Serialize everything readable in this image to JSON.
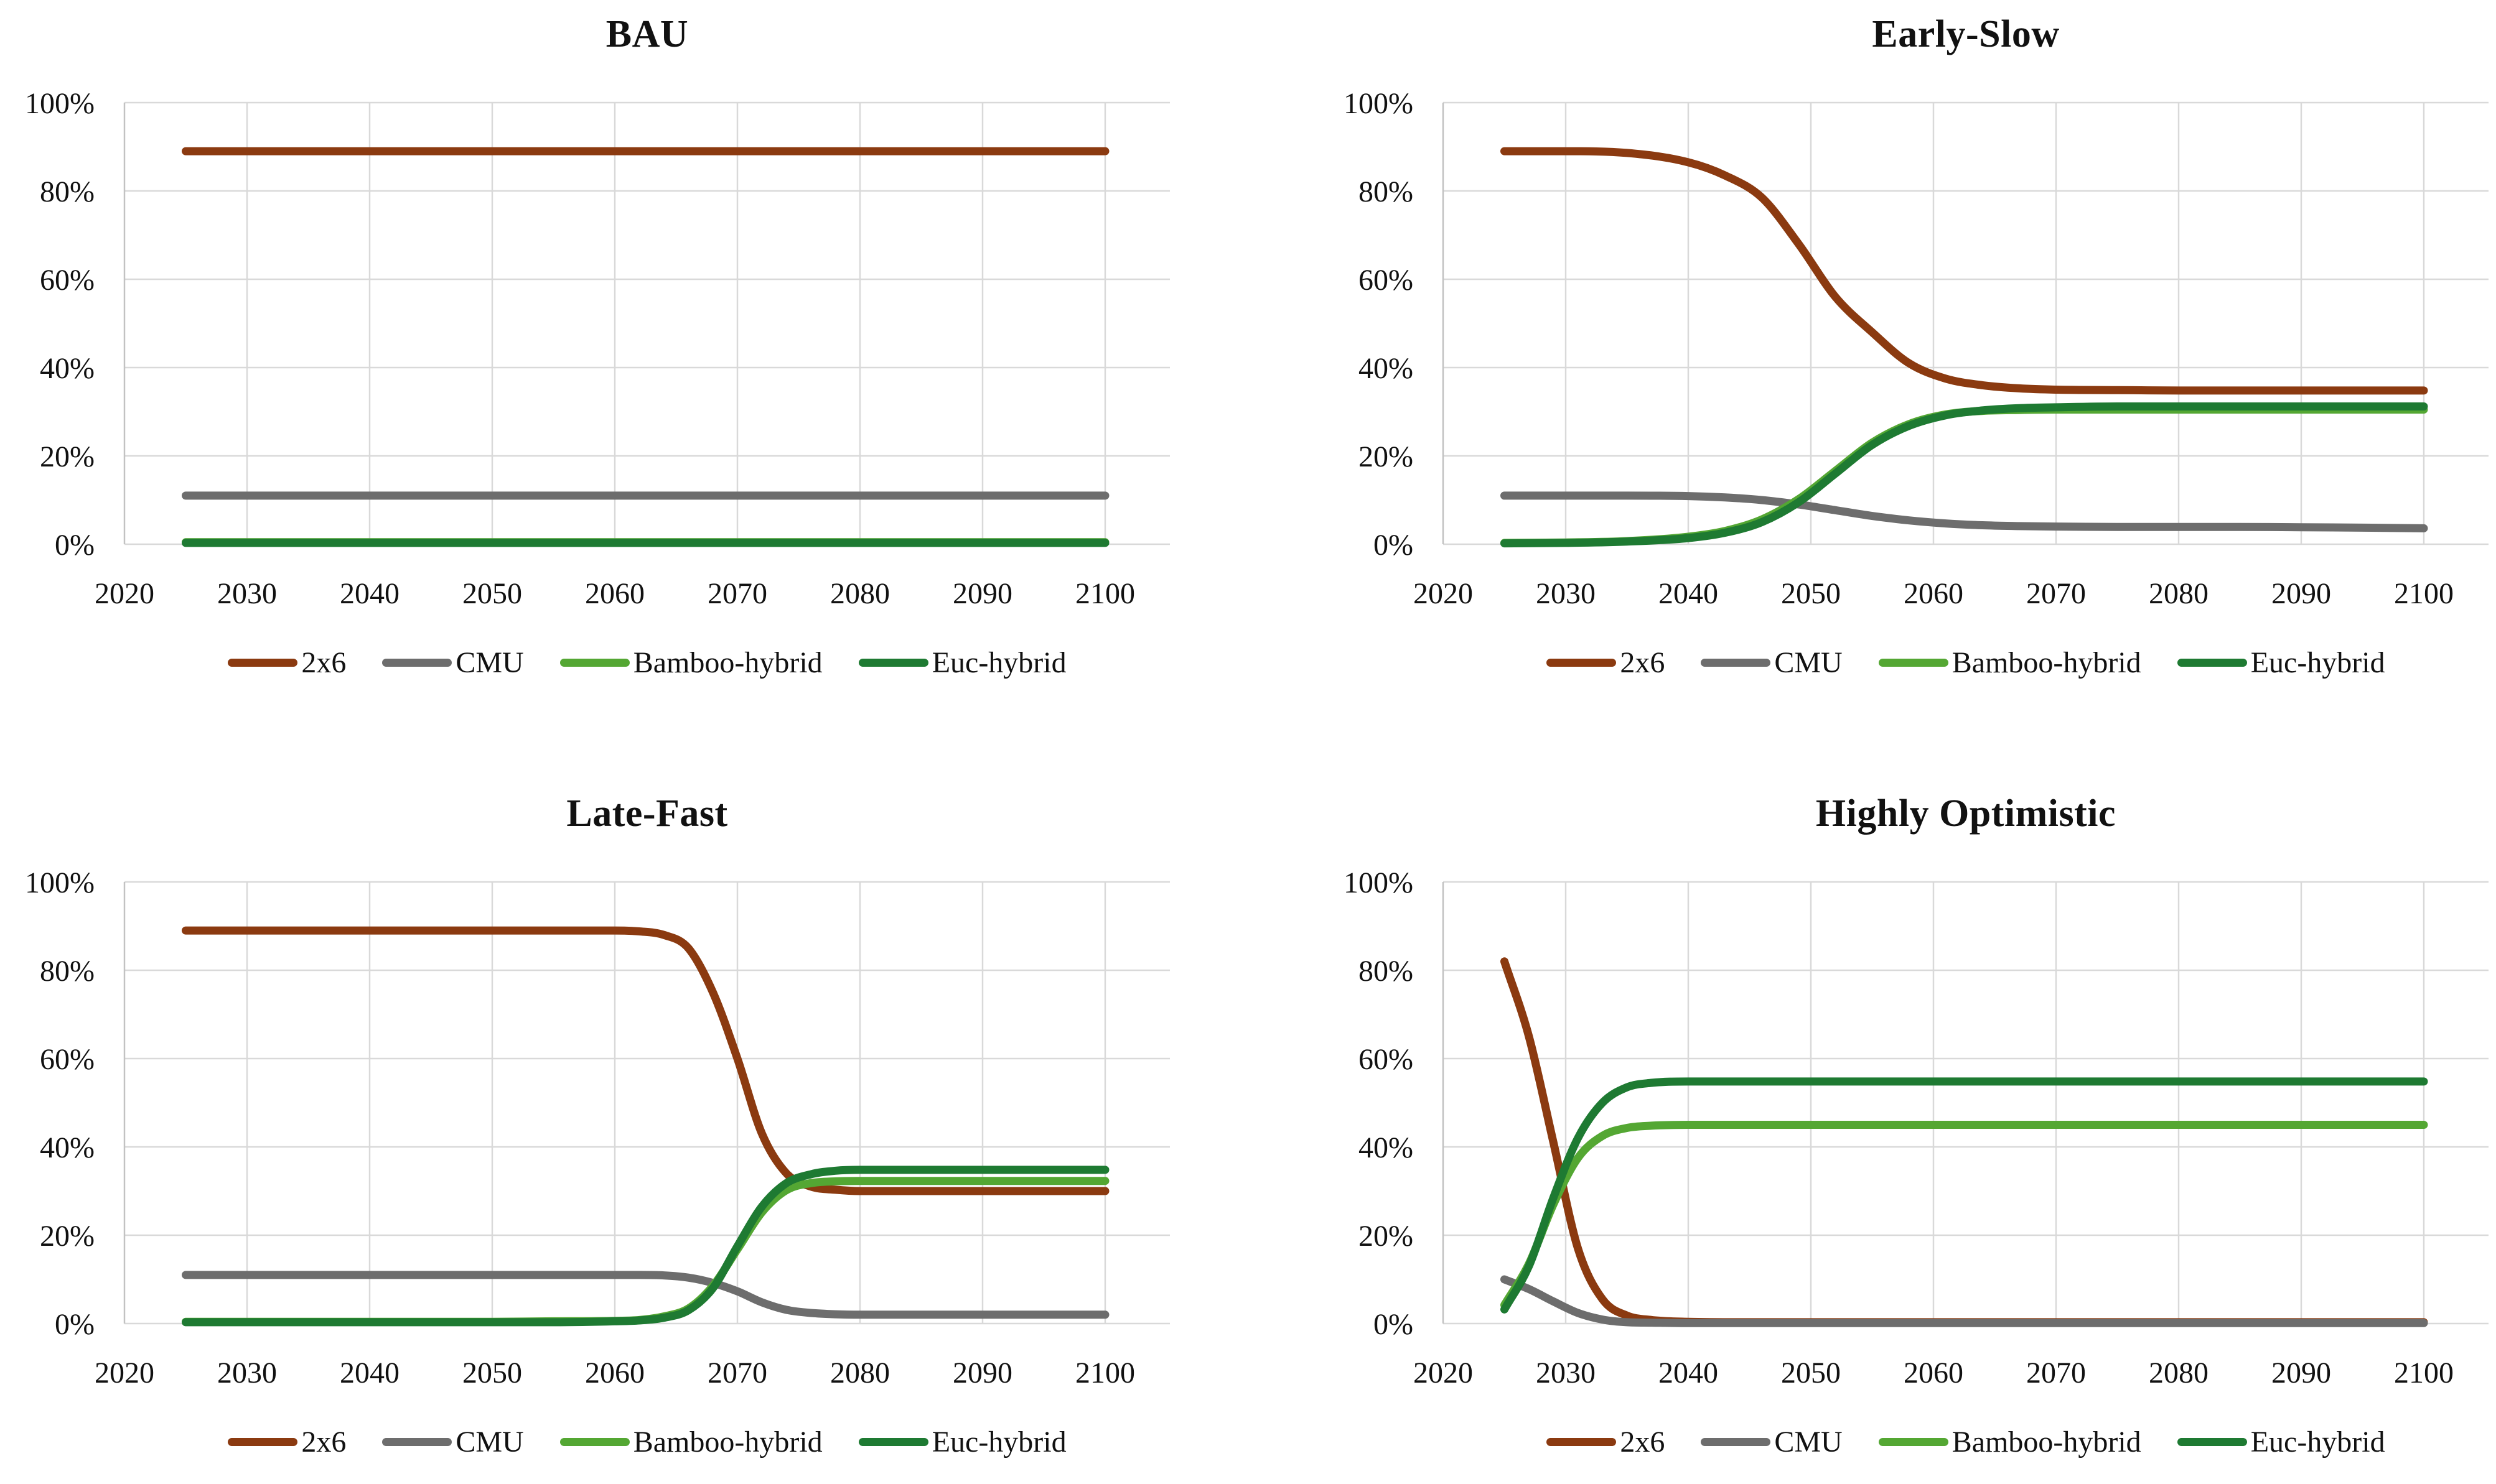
{
  "figure": {
    "background": "#ffffff",
    "description_titles": [
      "BAU",
      "Early-Slow",
      "Late-Fast",
      "Highly Optimistic"
    ]
  },
  "colors": {
    "grid": "#d9d9d9",
    "axis": "#c2c2c2",
    "text": "#111111",
    "series": {
      "2x6": "#8b3a10",
      "CMU": "#6d6d6d",
      "Bamboo-hybrid": "#54a733",
      "Euc-hybrid": "#1e7a32"
    }
  },
  "legend": [
    "2x6",
    "CMU",
    "Bamboo-hybrid",
    "Euc-hybrid"
  ],
  "chart_data": [
    {
      "type": "line",
      "title": "BAU",
      "xlabel": "",
      "ylabel": "",
      "xlim": [
        2020,
        2105
      ],
      "ylim": [
        0,
        100
      ],
      "grid": true,
      "legend_position": "bottom",
      "x_ticks": [
        2020,
        2030,
        2040,
        2050,
        2060,
        2070,
        2080,
        2090,
        2100
      ],
      "y_ticks": [
        "0%",
        "20%",
        "40%",
        "60%",
        "80%",
        "100%"
      ],
      "years": [
        2025,
        2030,
        2035,
        2040,
        2045,
        2050,
        2055,
        2060,
        2065,
        2070,
        2075,
        2080,
        2085,
        2090,
        2095,
        2100
      ],
      "series": [
        {
          "name": "2x6",
          "color": "#8b3a10",
          "values": [
            89,
            89,
            89,
            89,
            89,
            89,
            89,
            89,
            89,
            89,
            89,
            89,
            89,
            89,
            89,
            89
          ]
        },
        {
          "name": "CMU",
          "color": "#6d6d6d",
          "values": [
            11,
            11,
            11,
            11,
            11,
            11,
            11,
            11,
            11,
            11,
            11,
            11,
            11,
            11,
            11,
            11
          ]
        },
        {
          "name": "Bamboo-hybrid",
          "color": "#54a733",
          "values": [
            0.45,
            0.45,
            0.45,
            0.45,
            0.45,
            0.45,
            0.45,
            0.45,
            0.45,
            0.45,
            0.45,
            0.45,
            0.45,
            0.45,
            0.45,
            0.45
          ]
        },
        {
          "name": "Euc-hybrid",
          "color": "#1e7a32",
          "values": [
            0.3,
            0.3,
            0.3,
            0.3,
            0.3,
            0.3,
            0.3,
            0.3,
            0.3,
            0.3,
            0.3,
            0.3,
            0.3,
            0.3,
            0.3,
            0.3
          ]
        }
      ]
    },
    {
      "type": "line",
      "title": "Early-Slow",
      "xlabel": "",
      "ylabel": "",
      "xlim": [
        2020,
        2105
      ],
      "ylim": [
        0,
        100
      ],
      "grid": true,
      "legend_position": "bottom",
      "x_ticks": [
        2020,
        2030,
        2040,
        2050,
        2060,
        2070,
        2080,
        2090,
        2100
      ],
      "y_ticks": [
        "0%",
        "20%",
        "40%",
        "60%",
        "80%",
        "100%"
      ],
      "years": [
        2025,
        2030,
        2035,
        2040,
        2043,
        2046,
        2049,
        2052,
        2055,
        2058,
        2061,
        2064,
        2067,
        2070,
        2075,
        2080,
        2085,
        2090,
        2095,
        2100
      ],
      "series": [
        {
          "name": "2x6",
          "color": "#8b3a10",
          "values": [
            89,
            89,
            88.6,
            86.5,
            83.5,
            78.5,
            68,
            56,
            48,
            41,
            37.5,
            36,
            35.3,
            35,
            34.9,
            34.8,
            34.8,
            34.8,
            34.8,
            34.8
          ]
        },
        {
          "name": "CMU",
          "color": "#6d6d6d",
          "values": [
            11,
            11,
            11,
            10.9,
            10.6,
            10,
            9,
            7.7,
            6.4,
            5.4,
            4.7,
            4.3,
            4.1,
            4,
            3.9,
            3.9,
            3.9,
            3.85,
            3.75,
            3.6
          ]
        },
        {
          "name": "Bamboo-hybrid",
          "color": "#54a733",
          "values": [
            0.3,
            0.4,
            0.7,
            1.7,
            3,
            5.6,
            10.2,
            16.6,
            23,
            27.2,
            29.4,
            30.2,
            30.4,
            30.5,
            30.5,
            30.5,
            30.5,
            30.5,
            30.5,
            30.5
          ]
        },
        {
          "name": "Euc-hybrid",
          "color": "#1e7a32",
          "values": [
            0.2,
            0.3,
            0.6,
            1.4,
            2.6,
            5,
            9.5,
            16,
            22.5,
            26.8,
            29.2,
            30.3,
            30.8,
            31,
            31.2,
            31.2,
            31.2,
            31.2,
            31.2,
            31.2
          ]
        }
      ]
    },
    {
      "type": "line",
      "title": "Late-Fast",
      "xlabel": "",
      "ylabel": "",
      "xlim": [
        2020,
        2105
      ],
      "ylim": [
        0,
        100
      ],
      "grid": true,
      "legend_position": "bottom",
      "x_ticks": [
        2020,
        2030,
        2040,
        2050,
        2060,
        2070,
        2080,
        2090,
        2100
      ],
      "y_ticks": [
        "0%",
        "20%",
        "40%",
        "60%",
        "80%",
        "100%"
      ],
      "years": [
        2025,
        2030,
        2035,
        2040,
        2045,
        2050,
        2055,
        2060,
        2062,
        2064,
        2066,
        2068,
        2070,
        2072,
        2074,
        2076,
        2078,
        2080,
        2085,
        2090,
        2095,
        2100
      ],
      "series": [
        {
          "name": "2x6",
          "color": "#8b3a10",
          "values": [
            89,
            89,
            89,
            89,
            89,
            89,
            89,
            89,
            88.8,
            88,
            85,
            75,
            60,
            43,
            34,
            31,
            30.3,
            30,
            30,
            30,
            30,
            30
          ]
        },
        {
          "name": "CMU",
          "color": "#6d6d6d",
          "values": [
            11,
            11,
            11,
            11,
            11,
            11,
            11,
            11,
            11,
            10.9,
            10.4,
            9.2,
            7.3,
            4.8,
            3.1,
            2.4,
            2.1,
            2,
            2,
            2,
            2,
            2
          ]
        },
        {
          "name": "Bamboo-hybrid",
          "color": "#54a733",
          "values": [
            0.4,
            0.4,
            0.4,
            0.4,
            0.4,
            0.4,
            0.5,
            0.6,
            0.8,
            1.6,
            3.4,
            8.5,
            16.8,
            25.2,
            30.2,
            31.8,
            32.2,
            32.3,
            32.3,
            32.3,
            32.3,
            32.3
          ]
        },
        {
          "name": "Euc-hybrid",
          "color": "#1e7a32",
          "values": [
            0.3,
            0.3,
            0.3,
            0.3,
            0.3,
            0.3,
            0.3,
            0.5,
            0.7,
            1.3,
            3,
            8,
            17.5,
            26.5,
            31.8,
            33.8,
            34.6,
            34.8,
            34.8,
            34.8,
            34.8,
            34.8
          ]
        }
      ]
    },
    {
      "type": "line",
      "title": "Highly Optimistic",
      "xlabel": "",
      "ylabel": "",
      "xlim": [
        2020,
        2105
      ],
      "ylim": [
        0,
        100
      ],
      "grid": true,
      "legend_position": "bottom",
      "x_ticks": [
        2020,
        2030,
        2040,
        2050,
        2060,
        2070,
        2080,
        2090,
        2100
      ],
      "y_ticks": [
        "0%",
        "20%",
        "40%",
        "60%",
        "80%",
        "100%"
      ],
      "years": [
        2025,
        2027,
        2029,
        2031,
        2033,
        2035,
        2037,
        2040,
        2045,
        2050,
        2055,
        2060,
        2065,
        2070,
        2075,
        2080,
        2085,
        2090,
        2095,
        2100
      ],
      "series": [
        {
          "name": "2x6",
          "color": "#8b3a10",
          "values": [
            82,
            65,
            41,
            17,
            5.5,
            1.8,
            0.8,
            0.4,
            0.3,
            0.3,
            0.3,
            0.3,
            0.3,
            0.3,
            0.3,
            0.3,
            0.3,
            0.3,
            0.3,
            0.3
          ]
        },
        {
          "name": "CMU",
          "color": "#6d6d6d",
          "values": [
            10,
            7.8,
            5,
            2.4,
            0.9,
            0.3,
            0.2,
            0.1,
            0.1,
            0.1,
            0.1,
            0.1,
            0.1,
            0.1,
            0.1,
            0.1,
            0.1,
            0.1,
            0.1,
            0.1
          ]
        },
        {
          "name": "Bamboo-hybrid",
          "color": "#54a733",
          "values": [
            4.2,
            13.5,
            27,
            37.5,
            42.5,
            44.3,
            44.8,
            45,
            45,
            45,
            45,
            45,
            45,
            45,
            45,
            45,
            45,
            45,
            45,
            45
          ]
        },
        {
          "name": "Euc-hybrid",
          "color": "#1e7a32",
          "values": [
            3.2,
            13,
            28.5,
            42,
            50,
            53.5,
            54.5,
            54.8,
            54.8,
            54.8,
            54.8,
            54.8,
            54.8,
            54.8,
            54.8,
            54.8,
            54.8,
            54.8,
            54.8,
            54.8
          ]
        }
      ]
    }
  ]
}
